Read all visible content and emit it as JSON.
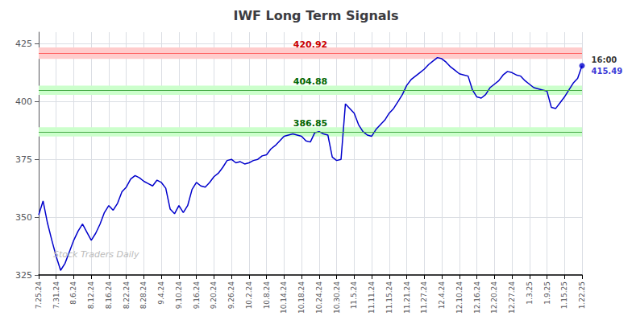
{
  "chart_data": {
    "type": "line",
    "title": "IWF Long Term Signals",
    "categories": [
      "7.25.24",
      null,
      null,
      null,
      "7.31.24",
      null,
      null,
      null,
      "8.6.24",
      null,
      null,
      null,
      "8.12.24",
      null,
      null,
      null,
      "8.16.24",
      null,
      null,
      null,
      "8.22.24",
      null,
      null,
      null,
      "8.28.24",
      null,
      null,
      null,
      "9.4.24",
      null,
      null,
      null,
      "9.10.24",
      null,
      null,
      null,
      "9.16.24",
      null,
      null,
      null,
      "9.20.24",
      null,
      null,
      null,
      "9.26.24",
      null,
      null,
      null,
      "10.2.24",
      null,
      null,
      null,
      "10.8.24",
      null,
      null,
      null,
      "10.14.24",
      null,
      null,
      null,
      "10.18.24",
      null,
      null,
      null,
      "10.24.24",
      null,
      null,
      null,
      "10.30.24",
      null,
      null,
      null,
      "11.5.24",
      null,
      null,
      null,
      "11.11.24",
      null,
      null,
      null,
      "11.15.24",
      null,
      null,
      null,
      "11.21.24",
      null,
      null,
      null,
      "11.27.24",
      null,
      null,
      null,
      "12.4.24",
      null,
      null,
      null,
      "12.10.24",
      null,
      null,
      null,
      "12.16.24",
      null,
      null,
      null,
      "12.20.24",
      null,
      null,
      null,
      "12.27.24",
      null,
      null,
      null,
      "1.3.25",
      null,
      null,
      null,
      "1.9.25",
      null,
      null,
      null,
      "1.15.25",
      null,
      null,
      null,
      "1.22.25"
    ],
    "values": [
      351.0,
      357.0,
      347.5,
      340.0,
      333.0,
      327.0,
      330.0,
      335.0,
      340.0,
      344.0,
      347.0,
      343.5,
      340.0,
      343.0,
      347.0,
      352.0,
      355.0,
      353.0,
      356.0,
      361.0,
      363.0,
      366.5,
      368.0,
      367.0,
      365.5,
      364.5,
      363.5,
      366.0,
      365.0,
      362.5,
      353.5,
      351.5,
      355.0,
      352.0,
      355.0,
      362.0,
      365.0,
      363.5,
      363.0,
      365.0,
      367.5,
      369.0,
      371.5,
      374.5,
      375.0,
      373.5,
      374.0,
      373.0,
      373.5,
      374.5,
      375.0,
      376.5,
      377.0,
      379.5,
      381.0,
      383.0,
      385.0,
      385.5,
      386.0,
      385.5,
      385.0,
      383.0,
      382.5,
      386.5,
      387.0,
      386.0,
      385.5,
      376.0,
      374.5,
      375.0,
      399.0,
      397.0,
      395.0,
      390.0,
      387.0,
      385.5,
      385.0,
      388.0,
      390.0,
      392.0,
      395.0,
      397.0,
      400.0,
      403.0,
      407.0,
      409.5,
      411.0,
      412.5,
      414.0,
      416.0,
      417.5,
      419.0,
      418.5,
      417.0,
      415.0,
      413.5,
      412.0,
      411.5,
      411.0,
      405.0,
      402.0,
      401.5,
      403.0,
      406.0,
      407.5,
      409.0,
      411.5,
      413.0,
      412.5,
      411.5,
      411.0,
      409.0,
      407.5,
      406.0,
      405.5,
      405.0,
      404.5,
      397.5,
      397.0,
      399.5,
      402.0,
      405.0,
      408.0,
      410.0,
      415.49
    ],
    "color": "#0000cc",
    "ylim": [
      325,
      430
    ],
    "yticks": [
      325,
      350,
      375,
      400,
      425
    ],
    "grid": true,
    "hlines": [
      {
        "y": 420.92,
        "band": 2.5,
        "label": "420.92",
        "line_color": "#ff6666",
        "fill_color": "#ffcccc",
        "label_color": "#cc0000"
      },
      {
        "y": 404.88,
        "band": 2.0,
        "label": "404.88",
        "line_color": "#44aa44",
        "fill_color": "#ccffcc",
        "label_color": "#006600"
      },
      {
        "y": 386.85,
        "band": 2.0,
        "label": "386.85",
        "line_color": "#44aa44",
        "fill_color": "#ccffcc",
        "label_color": "#006600"
      }
    ],
    "last_label": "16:00",
    "last_value": "415.49",
    "last_value_color": "#0000cc",
    "watermark": "Stock Traders Daily"
  }
}
